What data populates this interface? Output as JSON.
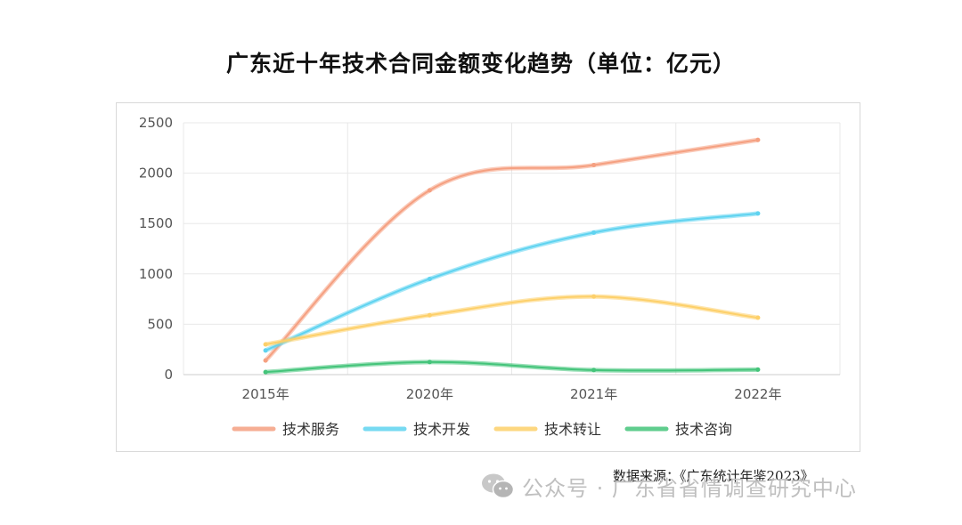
{
  "title": "广东近十年技术合同金额变化趋势（单位：亿元）",
  "source_note": "数据来源：《广东统计年鉴2023》",
  "watermark": {
    "icon": "wechat-icon",
    "text": "公众号 · 广东省省情调查研究中心"
  },
  "colors": {
    "grid": "#e8e8e8",
    "axis": "#cccccc",
    "tick_text": "#555555"
  },
  "chart_data": {
    "type": "line",
    "title": "广东近十年技术合同金额变化趋势（单位：亿元）",
    "categories": [
      "2015年",
      "2020年",
      "2021年",
      "2022年"
    ],
    "ylim": [
      0,
      2500
    ],
    "yticks": [
      0,
      500,
      1000,
      1500,
      2000,
      2500
    ],
    "grid": true,
    "smooth": true,
    "legend_position": "bottom",
    "series": [
      {
        "name": "技术服务",
        "color": "#f5a081",
        "values": [
          140,
          1830,
          2080,
          2330
        ]
      },
      {
        "name": "技术开发",
        "color": "#5fd3f0",
        "values": [
          240,
          950,
          1410,
          1600
        ]
      },
      {
        "name": "技术转让",
        "color": "#fdd06a",
        "values": [
          300,
          590,
          775,
          565
        ]
      },
      {
        "name": "技术咨询",
        "color": "#44c47a",
        "values": [
          25,
          125,
          45,
          50
        ]
      }
    ]
  }
}
